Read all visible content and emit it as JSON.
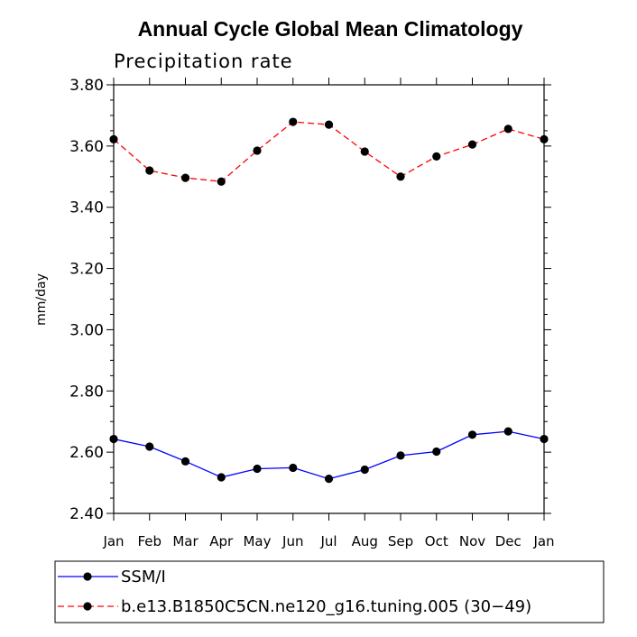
{
  "chart_data": {
    "type": "line",
    "title": "Annual Cycle Global Mean Climatology",
    "subtitle": "Precipitation rate",
    "xlabel": "",
    "ylabel": "mm/day",
    "ylim": [
      2.4,
      3.8
    ],
    "yticks": [
      "2.40",
      "2.60",
      "2.80",
      "3.00",
      "3.20",
      "3.40",
      "3.60",
      "3.80"
    ],
    "categories": [
      "Jan",
      "Feb",
      "Mar",
      "Apr",
      "May",
      "Jun",
      "Jul",
      "Aug",
      "Sep",
      "Oct",
      "Nov",
      "Dec",
      "Jan"
    ],
    "series": [
      {
        "name": "SSM/I",
        "color": "#0000ff",
        "dash": "solid",
        "values": [
          2.643,
          2.618,
          2.57,
          2.518,
          2.546,
          2.549,
          2.513,
          2.543,
          2.589,
          2.602,
          2.657,
          2.668,
          2.643
        ]
      },
      {
        "name": "b.e13.B1850C5CN.ne120_g16.tuning.005 (30−49)",
        "color": "#ff0000",
        "dash": "dashed",
        "values": [
          3.622,
          3.52,
          3.496,
          3.484,
          3.585,
          3.679,
          3.67,
          3.582,
          3.5,
          3.566,
          3.605,
          3.656,
          3.622
        ]
      }
    ],
    "legend_position": "bottom"
  }
}
